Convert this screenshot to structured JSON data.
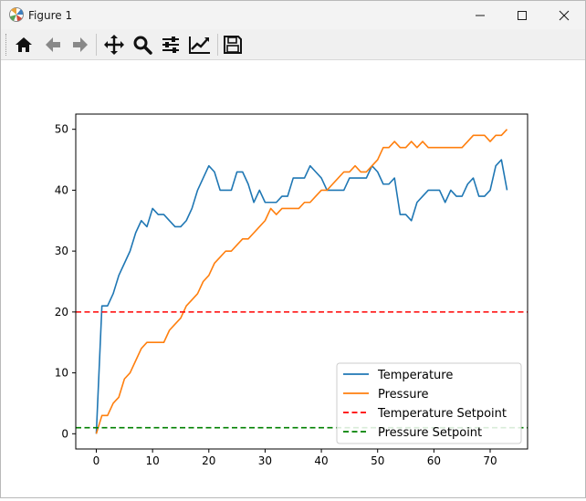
{
  "window": {
    "title": "Figure 1",
    "icon": "matplotlib-icon",
    "controls": {
      "minimize": "minimize-icon",
      "maximize": "maximize-icon",
      "close": "close-icon"
    }
  },
  "toolbar": {
    "buttons": [
      {
        "name": "home",
        "icon": "home-icon"
      },
      {
        "name": "back",
        "icon": "arrow-left-icon"
      },
      {
        "name": "forward",
        "icon": "arrow-right-icon"
      },
      {
        "name": "pan",
        "icon": "move-icon"
      },
      {
        "name": "zoom",
        "icon": "magnifier-icon"
      },
      {
        "name": "configure-subplots",
        "icon": "sliders-icon"
      },
      {
        "name": "edit-axis",
        "icon": "line-chart-icon"
      },
      {
        "name": "save",
        "icon": "floppy-disk-icon"
      }
    ]
  },
  "chart_data": {
    "type": "line",
    "xlim": [
      -3.65,
      76.65
    ],
    "ylim": [
      -2.5,
      52.5
    ],
    "xticks": [
      0,
      10,
      20,
      30,
      40,
      50,
      60,
      70
    ],
    "yticks": [
      0,
      10,
      20,
      30,
      40,
      50
    ],
    "grid": false,
    "legend_position": "lower-right",
    "series": [
      {
        "name": "Temperature",
        "color": "#1f77b4",
        "style": "solid",
        "x": [
          0,
          1,
          2,
          3,
          4,
          5,
          6,
          7,
          8,
          9,
          10,
          11,
          12,
          13,
          14,
          15,
          16,
          17,
          18,
          19,
          20,
          21,
          22,
          23,
          24,
          25,
          26,
          27,
          28,
          29,
          30,
          31,
          32,
          33,
          34,
          35,
          36,
          37,
          38,
          39,
          40,
          41,
          42,
          43,
          44,
          45,
          46,
          47,
          48,
          49,
          50,
          51,
          52,
          53,
          54,
          55,
          56,
          57,
          58,
          59,
          60,
          61,
          62,
          63,
          64,
          65,
          66,
          67,
          68,
          69,
          70,
          71,
          72,
          73
        ],
        "y": [
          0,
          21,
          21,
          23,
          26,
          28,
          30,
          33,
          35,
          34,
          37,
          36,
          36,
          35,
          34,
          34,
          35,
          37,
          40,
          42,
          44,
          43,
          40,
          40,
          40,
          43,
          43,
          41,
          38,
          40,
          38,
          38,
          38,
          39,
          39,
          42,
          42,
          42,
          44,
          43,
          42,
          40,
          40,
          40,
          40,
          42,
          42,
          42,
          42,
          44,
          43,
          41,
          41,
          42,
          36,
          36,
          35,
          38,
          39,
          40,
          40,
          40,
          38,
          40,
          39,
          39,
          41,
          42,
          39,
          39,
          40,
          44,
          45,
          40
        ]
      },
      {
        "name": "Pressure",
        "color": "#ff7f0e",
        "style": "solid",
        "x": [
          0,
          1,
          2,
          3,
          4,
          5,
          6,
          7,
          8,
          9,
          10,
          11,
          12,
          13,
          14,
          15,
          16,
          17,
          18,
          19,
          20,
          21,
          22,
          23,
          24,
          25,
          26,
          27,
          28,
          29,
          30,
          31,
          32,
          33,
          34,
          35,
          36,
          37,
          38,
          39,
          40,
          41,
          42,
          43,
          44,
          45,
          46,
          47,
          48,
          49,
          50,
          51,
          52,
          53,
          54,
          55,
          56,
          57,
          58,
          59,
          60,
          61,
          62,
          63,
          64,
          65,
          66,
          67,
          68,
          69,
          70,
          71,
          72,
          73
        ],
        "y": [
          0,
          3,
          3,
          5,
          6,
          9,
          10,
          12,
          14,
          15,
          15,
          15,
          15,
          17,
          18,
          19,
          21,
          22,
          23,
          25,
          26,
          28,
          29,
          30,
          30,
          31,
          32,
          32,
          33,
          34,
          35,
          37,
          36,
          37,
          37,
          37,
          37,
          38,
          38,
          39,
          40,
          40,
          41,
          42,
          43,
          43,
          44,
          43,
          43,
          44,
          45,
          47,
          47,
          48,
          47,
          47,
          48,
          47,
          48,
          47,
          47,
          47,
          47,
          47,
          47,
          47,
          48,
          49,
          49,
          49,
          48,
          49,
          49,
          50
        ]
      },
      {
        "name": "Temperature Setpoint",
        "color": "#ff0000",
        "style": "dashed",
        "value": 20
      },
      {
        "name": "Pressure Setpoint",
        "color": "#008000",
        "style": "dashed",
        "value": 1
      }
    ]
  }
}
